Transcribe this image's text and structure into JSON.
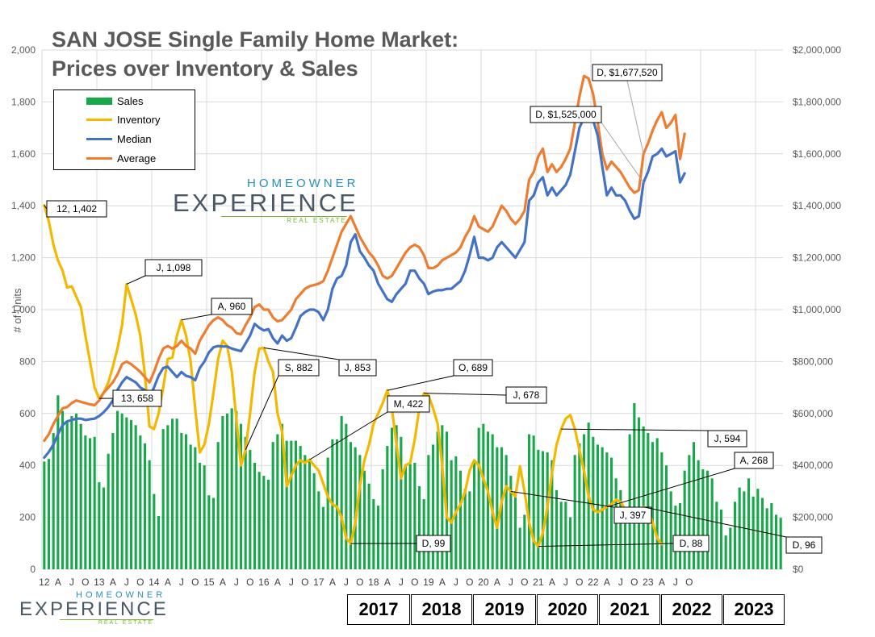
{
  "header": {
    "title_line1": "SAN JOSE Single Family Home Market:",
    "title_line2": "Prices over Inventory & Sales"
  },
  "logos": {
    "brand_top": "HOMEOWNER",
    "brand_main": "EXPERIENCE",
    "brand_sub": "REAL ESTATE"
  },
  "chart_data": {
    "type": "bar+line",
    "y_left_label": "# of Units",
    "y_left_range": [
      0,
      2000
    ],
    "y_left_ticks": [
      "0",
      "200",
      "400",
      "600",
      "800",
      "1,000",
      "1,200",
      "1,400",
      "1,600",
      "1,800",
      "2,000"
    ],
    "y_right_range": [
      0,
      2000000
    ],
    "y_right_ticks": [
      "$0",
      "$200,000",
      "$400,000",
      "$600,000",
      "$800,000",
      "$1,000,000",
      "$1,200,000",
      "$1,400,000",
      "$1,600,000",
      "$1,800,000",
      "$2,000,000"
    ],
    "x_tick_labels": [
      "12",
      "A",
      "J",
      "O",
      "13",
      "A",
      "J",
      "O",
      "14",
      "A",
      "J",
      "O",
      "15",
      "A",
      "J",
      "O",
      "16",
      "A",
      "J",
      "O",
      "17",
      "A",
      "J",
      "O",
      "18",
      "A",
      "J",
      "O",
      "19",
      "A",
      "J",
      "O",
      "20",
      "A",
      "J",
      "O",
      "21",
      "A",
      "J",
      "O",
      "22",
      "A",
      "J",
      "O",
      "23",
      "A",
      "J",
      "O"
    ],
    "year_boxes": [
      "2017",
      "2018",
      "2019",
      "2020",
      "2021",
      "2022",
      "2023"
    ],
    "legend": [
      "Sales",
      "Inventory",
      "Median",
      "Average"
    ],
    "colors": {
      "sales": "#18a84b",
      "inventory": "#f5b800",
      "median": "#4472c4",
      "average": "#ed7d31",
      "grid": "#d9d9d9"
    },
    "sales": [
      415,
      425,
      525,
      670,
      610,
      570,
      590,
      600,
      560,
      515,
      505,
      510,
      335,
      315,
      445,
      525,
      610,
      600,
      585,
      575,
      555,
      515,
      485,
      420,
      290,
      205,
      540,
      555,
      580,
      580,
      525,
      520,
      480,
      470,
      410,
      400,
      285,
      275,
      490,
      590,
      600,
      620,
      610,
      560,
      510,
      460,
      410,
      375,
      360,
      345,
      490,
      520,
      560,
      495,
      495,
      495,
      475,
      440,
      420,
      370,
      300,
      240,
      430,
      500,
      500,
      590,
      560,
      490,
      470,
      440,
      380,
      330,
      270,
      245,
      385,
      475,
      545,
      555,
      510,
      405,
      405,
      410,
      320,
      270,
      440,
      480,
      530,
      555,
      530,
      420,
      435,
      380,
      310,
      300,
      420,
      545,
      560,
      530,
      520,
      470,
      470,
      440,
      360,
      300,
      160,
      210,
      520,
      515,
      460,
      455,
      450,
      420,
      305,
      260,
      260,
      200,
      440,
      485,
      520,
      565,
      510,
      480,
      470,
      450,
      430,
      350,
      305,
      210,
      520,
      640,
      585,
      550,
      525,
      490,
      505,
      450,
      400,
      300,
      245,
      255,
      380,
      440,
      490,
      420,
      385,
      380,
      350,
      260,
      230,
      130,
      160,
      260,
      315,
      300,
      350,
      280,
      310,
      275,
      235,
      255,
      210,
      198
    ],
    "inventory": [
      1402,
      1340,
      1250,
      1190,
      1150,
      1085,
      1090,
      1050,
      1010,
      900,
      800,
      700,
      658,
      680,
      720,
      780,
      850,
      940,
      1098,
      1040,
      980,
      900,
      750,
      550,
      540,
      600,
      700,
      810,
      815,
      900,
      960,
      900,
      800,
      620,
      450,
      480,
      560,
      680,
      810,
      880,
      860,
      760,
      580,
      400,
      460,
      600,
      760,
      850,
      853,
      800,
      760,
      600,
      530,
      320,
      360,
      400,
      420,
      410,
      422,
      400,
      380,
      330,
      280,
      250,
      240,
      200,
      120,
      99,
      180,
      320,
      420,
      480,
      560,
      600,
      640,
      689,
      620,
      480,
      350,
      400,
      410,
      500,
      620,
      678,
      670,
      620,
      560,
      400,
      200,
      180,
      220,
      250,
      300,
      380,
      420,
      400,
      350,
      300,
      220,
      160,
      260,
      320,
      300,
      280,
      397,
      300,
      180,
      110,
      88,
      140,
      240,
      370,
      480,
      540,
      580,
      594,
      540,
      460,
      380,
      280,
      230,
      220,
      230,
      240,
      250,
      268,
      260,
      230,
      210,
      200,
      220,
      240,
      230,
      180,
      120,
      96
    ],
    "median": [
      430,
      452,
      480,
      520,
      555,
      570,
      575,
      580,
      580,
      575,
      578,
      580,
      590,
      605,
      625,
      650,
      690,
      720,
      740,
      730,
      720,
      700,
      690,
      660,
      700,
      745,
      775,
      780,
      760,
      740,
      760,
      745,
      740,
      728,
      775,
      800,
      835,
      855,
      860,
      858,
      858,
      850,
      845,
      840,
      870,
      900,
      945,
      930,
      920,
      925,
      890,
      870,
      900,
      880,
      890,
      930,
      975,
      990,
      1000,
      1000,
      990,
      960,
      1000,
      1080,
      1120,
      1130,
      1170,
      1260,
      1290,
      1225,
      1200,
      1170,
      1150,
      1100,
      1070,
      1040,
      1030,
      1060,
      1080,
      1100,
      1150,
      1150,
      1120,
      1100,
      1060,
      1070,
      1075,
      1075,
      1080,
      1080,
      1095,
      1110,
      1150,
      1210,
      1280,
      1200,
      1200,
      1190,
      1200,
      1240,
      1260,
      1240,
      1220,
      1200,
      1230,
      1260,
      1420,
      1440,
      1490,
      1510,
      1440,
      1470,
      1440,
      1460,
      1480,
      1520,
      1610,
      1700,
      1740,
      1740,
      1730,
      1670,
      1550,
      1440,
      1470,
      1440,
      1440,
      1420,
      1380,
      1350,
      1360,
      1490,
      1530,
      1590,
      1600,
      1620,
      1590,
      1600,
      1610,
      1490,
      1525
    ],
    "average": [
      495,
      520,
      560,
      590,
      620,
      625,
      640,
      650,
      645,
      640,
      635,
      632,
      650,
      680,
      700,
      720,
      750,
      790,
      800,
      790,
      775,
      760,
      740,
      720,
      760,
      810,
      850,
      860,
      850,
      860,
      880,
      860,
      850,
      830,
      880,
      910,
      940,
      960,
      970,
      960,
      940,
      930,
      910,
      905,
      940,
      970,
      1010,
      1020,
      1000,
      1000,
      970,
      955,
      960,
      980,
      1000,
      1040,
      1060,
      1080,
      1090,
      1095,
      1100,
      1110,
      1150,
      1200,
      1250,
      1300,
      1330,
      1360,
      1320,
      1280,
      1250,
      1220,
      1200,
      1170,
      1130,
      1120,
      1130,
      1160,
      1190,
      1220,
      1240,
      1250,
      1240,
      1210,
      1160,
      1160,
      1170,
      1190,
      1200,
      1210,
      1220,
      1240,
      1280,
      1310,
      1360,
      1320,
      1310,
      1300,
      1320,
      1360,
      1400,
      1380,
      1350,
      1330,
      1350,
      1380,
      1500,
      1530,
      1590,
      1620,
      1530,
      1560,
      1530,
      1550,
      1580,
      1620,
      1720,
      1820,
      1900,
      1890,
      1830,
      1720,
      1600,
      1540,
      1570,
      1550,
      1530,
      1500,
      1470,
      1450,
      1460,
      1600,
      1640,
      1690,
      1730,
      1760,
      1700,
      1720,
      1750,
      1580,
      1677.52
    ],
    "annotations": [
      {
        "text": "12, 1,402",
        "series": "inventory",
        "index": 0
      },
      {
        "text": "J, 1,098",
        "series": "inventory",
        "index": 18
      },
      {
        "text": "13, 658",
        "series": "inventory",
        "index": 12
      },
      {
        "text": "A,  960",
        "series": "inventory",
        "index": 30
      },
      {
        "text": "S,  882",
        "series": "inventory",
        "index": 44
      },
      {
        "text": "J,  853",
        "series": "inventory",
        "index": 48
      },
      {
        "text": "M,  422",
        "series": "inventory",
        "index": 58
      },
      {
        "text": "D, 99",
        "series": "inventory",
        "index": 67
      },
      {
        "text": "O, 689",
        "series": "inventory",
        "index": 75
      },
      {
        "text": "J, 678",
        "series": "inventory",
        "index": 83
      },
      {
        "text": "J, 397",
        "series": "inventory",
        "index": 102
      },
      {
        "text": "D, 88",
        "series": "inventory",
        "index": 108
      },
      {
        "text": "J, 594",
        "series": "inventory",
        "index": 113
      },
      {
        "text": "A, 268",
        "series": "inventory",
        "index": 123
      },
      {
        "text": "D, 96",
        "series": "inventory",
        "index": 131
      },
      {
        "text": "D, $1,677,520",
        "series": "average",
        "index": 131
      },
      {
        "text": "D, $1,525,000",
        "series": "median",
        "index": 131
      }
    ]
  }
}
